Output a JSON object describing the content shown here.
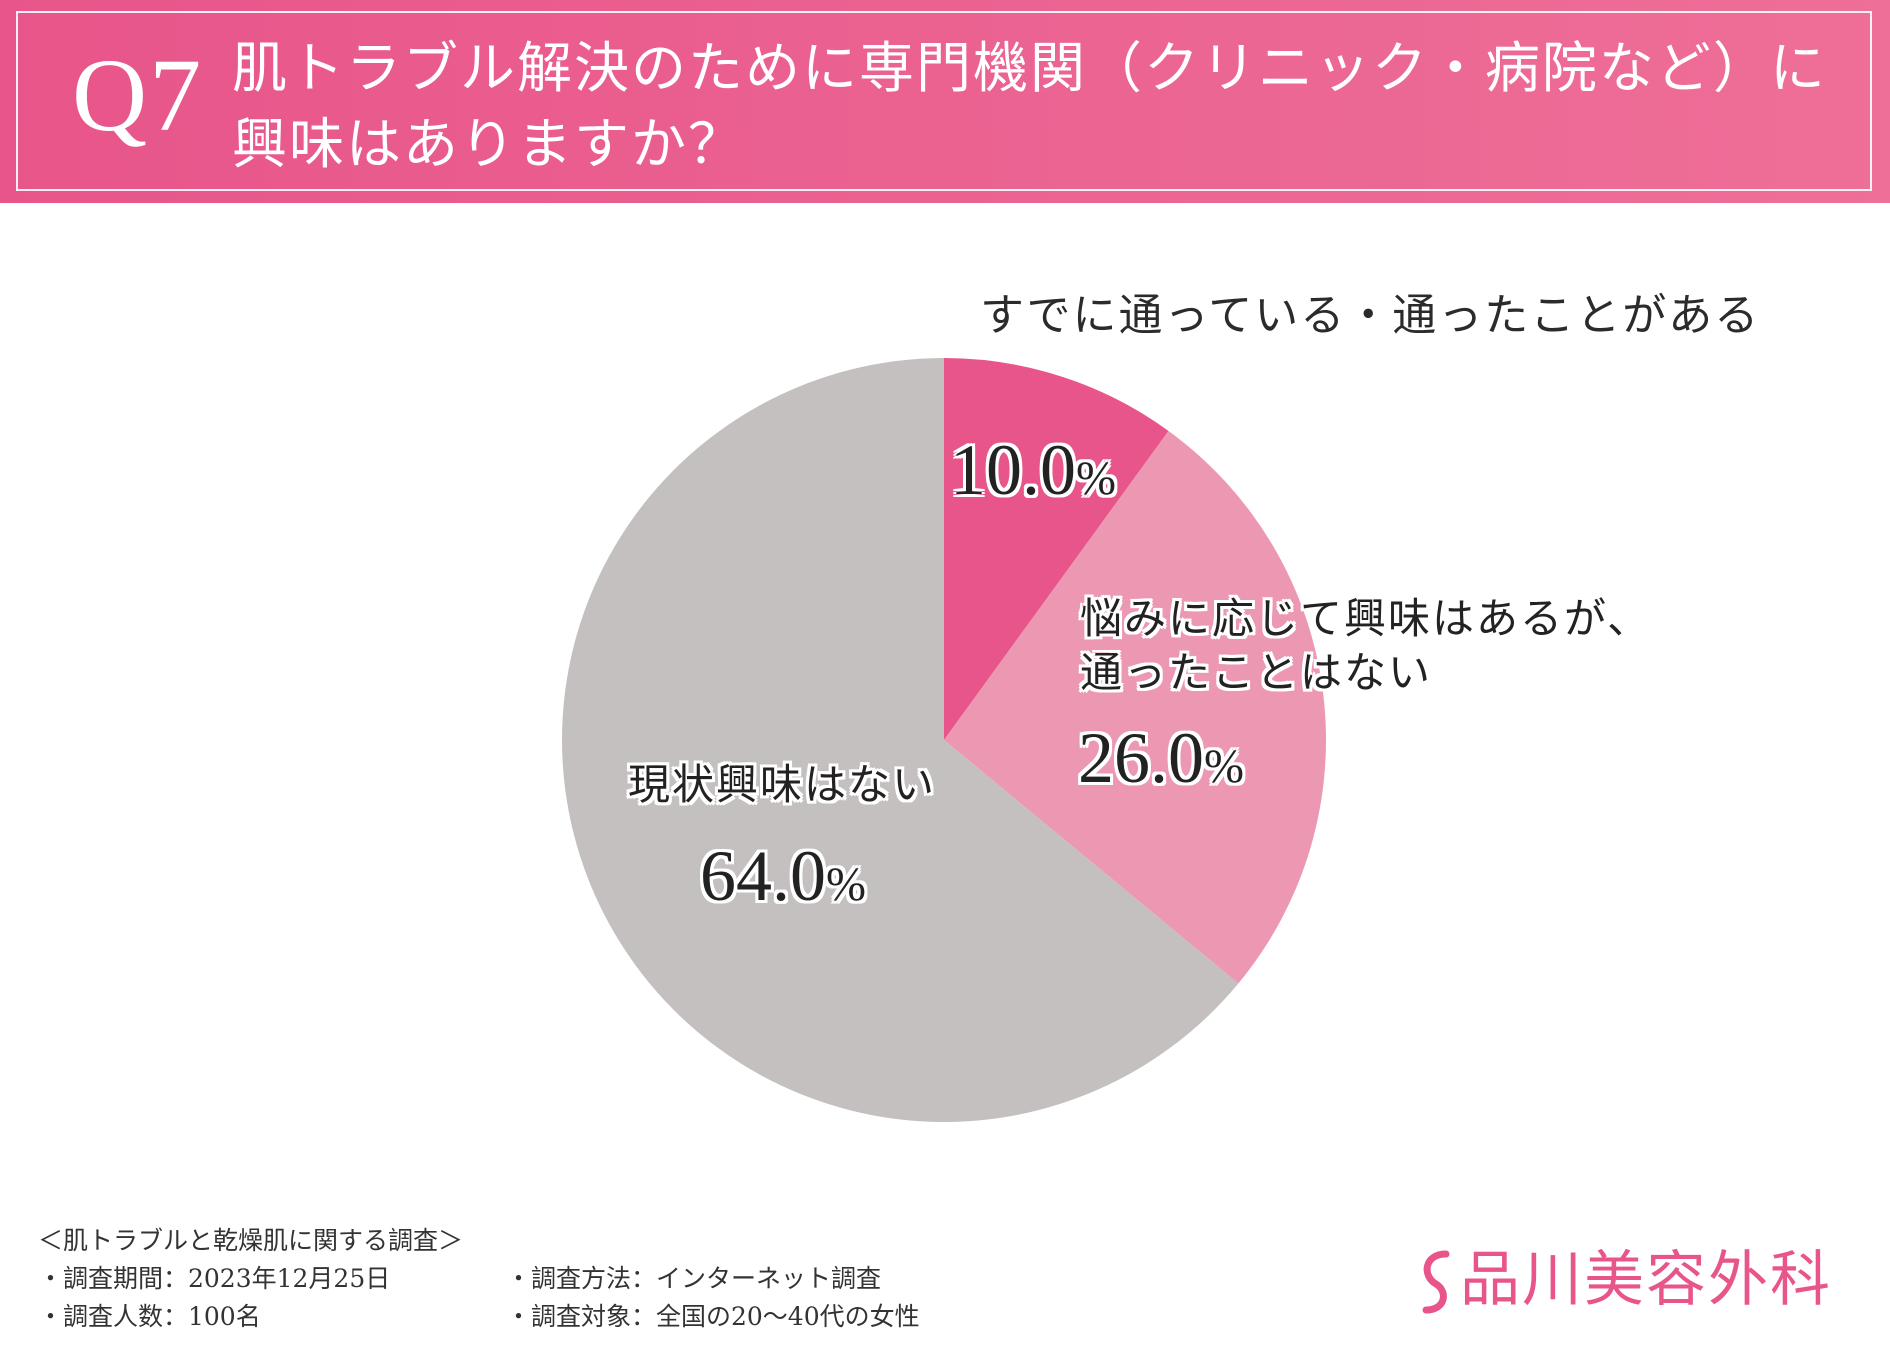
{
  "header": {
    "question_number": "Q7",
    "title_line1": "肌トラブル解決のために専門機関（クリニック・病院など）に",
    "title_line2": "興味はありますか？"
  },
  "colors": {
    "header": "#e8558a",
    "slice_1": "#e8558a",
    "slice_2": "#ec98b2",
    "slice_3": "#c4c0c0",
    "logo": "#e8558a"
  },
  "chart_data": {
    "type": "pie",
    "slices": [
      {
        "label": "すでに通っている・通ったことがある",
        "label_lines": [
          "すでに通っている・通ったことがある"
        ],
        "value": 10.0,
        "display": "10.0",
        "color": "#e8558a"
      },
      {
        "label": "悩みに応じて興味はあるが、通ったことはない",
        "label_lines": [
          "悩みに応じて興味はあるが、",
          "通ったことはない"
        ],
        "value": 26.0,
        "display": "26.0",
        "color": "#ec98b2"
      },
      {
        "label": "現状興味はない",
        "label_lines": [
          "現状興味はない"
        ],
        "value": 64.0,
        "display": "64.0",
        "color": "#c4c0c0"
      }
    ],
    "unit": "%",
    "start_angle": "12 o'clock",
    "direction": "clockwise"
  },
  "footer": {
    "survey_title": "＜肌トラブルと乾燥肌に関する調査＞",
    "period": "・調査期間：2023年12月25日",
    "method": "・調査方法：インターネット調査",
    "count": "・調査人数：100名",
    "target": "・調査対象：全国の20～40代の女性"
  },
  "logo": {
    "text": "品川美容外科",
    "mark_icon": "s-swoosh-icon"
  }
}
